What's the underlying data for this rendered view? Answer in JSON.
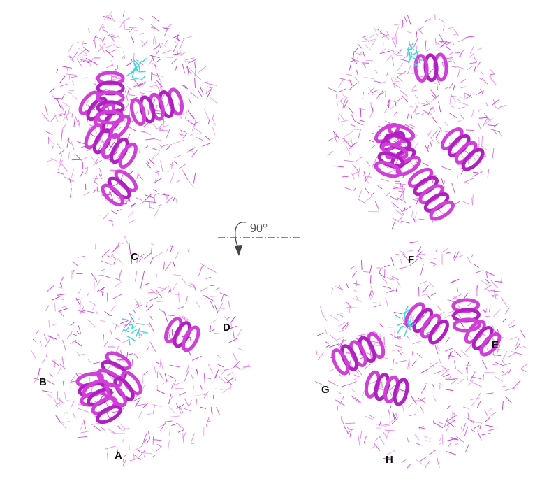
{
  "rotation_label": "90°",
  "panels": [
    {
      "labels": [
        "C",
        "D",
        "B",
        "A"
      ]
    },
    {
      "labels": [
        "F",
        "E",
        "G",
        "H"
      ]
    }
  ]
}
